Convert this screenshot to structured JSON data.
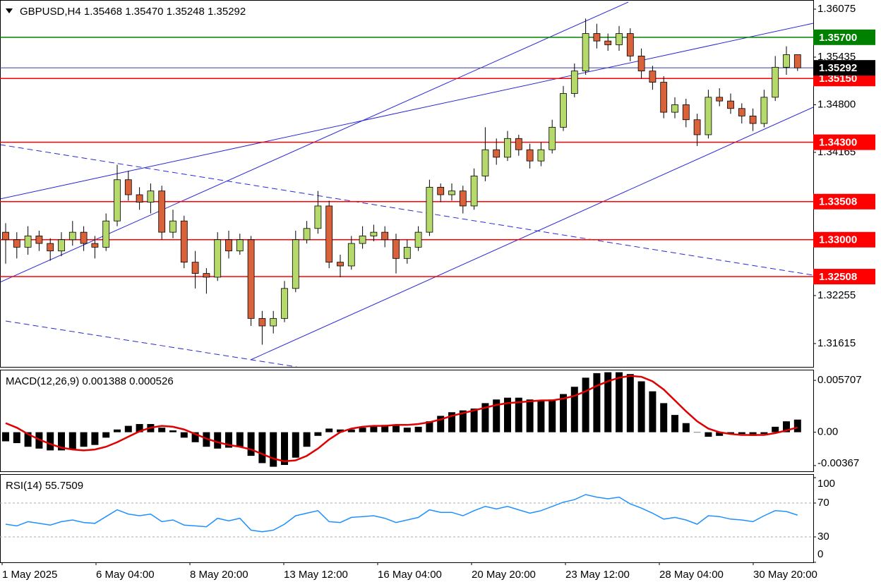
{
  "chart_data": [
    {
      "type": "candlestick",
      "title": "GBPUSD,H4 1.35468 1.35470 1.35248 1.35292",
      "up_color": "#b5d96b",
      "down_color": "#d9623b",
      "open": [
        1.331,
        1.33,
        1.329,
        1.3305,
        1.3295,
        1.3285,
        1.33,
        1.331,
        1.3295,
        1.329,
        1.3325,
        1.338,
        1.336,
        1.335,
        1.3365,
        1.331,
        1.3325,
        1.327,
        1.3255,
        1.325,
        1.33,
        1.3285,
        1.33,
        1.3195,
        1.3185,
        1.3195,
        1.3235,
        1.33,
        1.3315,
        1.3345,
        1.327,
        1.3265,
        1.3295,
        1.3305,
        1.331,
        1.33,
        1.3275,
        1.329,
        1.331,
        1.337,
        1.336,
        1.3365,
        1.3345,
        1.3385,
        1.342,
        1.341,
        1.3435,
        1.342,
        1.3405,
        1.342,
        1.345,
        1.3495,
        1.3525,
        1.3575,
        1.3565,
        1.356,
        1.3575,
        1.3545,
        1.3525,
        1.351,
        1.347,
        1.348,
        1.346,
        1.344,
        1.349,
        1.3485,
        1.3475,
        1.3465,
        1.3455,
        1.349,
        1.353,
        1.35468
      ],
      "high": [
        1.3322,
        1.331,
        1.3318,
        1.3312,
        1.3302,
        1.331,
        1.3325,
        1.3318,
        1.3305,
        1.3335,
        1.34,
        1.3392,
        1.337,
        1.3375,
        1.3372,
        1.334,
        1.3332,
        1.3285,
        1.3262,
        1.331,
        1.3312,
        1.3308,
        1.3305,
        1.3205,
        1.3205,
        1.3245,
        1.3312,
        1.3325,
        1.3365,
        1.3352,
        1.328,
        1.3305,
        1.3318,
        1.332,
        1.3318,
        1.3308,
        1.33,
        1.3318,
        1.338,
        1.3375,
        1.3375,
        1.3372,
        1.3395,
        1.345,
        1.3435,
        1.3445,
        1.344,
        1.3428,
        1.343,
        1.346,
        1.3505,
        1.3535,
        1.3595,
        1.3588,
        1.3575,
        1.3585,
        1.3582,
        1.3555,
        1.3532,
        1.3518,
        1.349,
        1.3488,
        1.3468,
        1.35,
        1.3502,
        1.3495,
        1.3482,
        1.3475,
        1.35,
        1.3545,
        1.3558,
        1.3547
      ],
      "low": [
        1.3268,
        1.3275,
        1.328,
        1.3285,
        1.3272,
        1.3278,
        1.3292,
        1.3285,
        1.3275,
        1.3285,
        1.3318,
        1.3352,
        1.334,
        1.3335,
        1.33,
        1.3302,
        1.3262,
        1.3235,
        1.3228,
        1.3245,
        1.3275,
        1.328,
        1.3185,
        1.316,
        1.3175,
        1.319,
        1.323,
        1.3295,
        1.3308,
        1.3262,
        1.325,
        1.326,
        1.3288,
        1.3298,
        1.329,
        1.3255,
        1.3268,
        1.3285,
        1.3305,
        1.335,
        1.3352,
        1.3335,
        1.334,
        1.3378,
        1.34,
        1.3405,
        1.3412,
        1.3395,
        1.3398,
        1.3415,
        1.3445,
        1.349,
        1.352,
        1.3555,
        1.3552,
        1.3552,
        1.3538,
        1.3515,
        1.35,
        1.3462,
        1.3462,
        1.345,
        1.3425,
        1.3435,
        1.3478,
        1.3468,
        1.3455,
        1.3445,
        1.345,
        1.3485,
        1.352,
        1.3525
      ],
      "close": [
        1.33,
        1.329,
        1.3305,
        1.3295,
        1.3285,
        1.33,
        1.331,
        1.3295,
        1.329,
        1.3325,
        1.338,
        1.336,
        1.335,
        1.3365,
        1.331,
        1.3325,
        1.327,
        1.3255,
        1.325,
        1.33,
        1.3285,
        1.33,
        1.3195,
        1.3185,
        1.3195,
        1.3235,
        1.33,
        1.3315,
        1.3345,
        1.327,
        1.3265,
        1.3295,
        1.3305,
        1.331,
        1.33,
        1.3275,
        1.329,
        1.331,
        1.337,
        1.336,
        1.3365,
        1.3345,
        1.3385,
        1.342,
        1.341,
        1.3435,
        1.342,
        1.3405,
        1.342,
        1.345,
        1.3495,
        1.3525,
        1.3575,
        1.3565,
        1.356,
        1.3575,
        1.3545,
        1.3525,
        1.351,
        1.347,
        1.348,
        1.346,
        1.344,
        1.349,
        1.3485,
        1.3475,
        1.3465,
        1.3455,
        1.349,
        1.353,
        1.35468,
        1.35292
      ],
      "ylim": [
        1.31304,
        1.36197
      ],
      "yticks": [
        1.36075,
        1.35435,
        {
          "value": 1.348,
          "label": "1.34800"
        },
        1.34165,
        1.32255,
        1.31615
      ],
      "levels": [
        {
          "value": 1.357,
          "label": "1.35700",
          "color": "#008000"
        },
        {
          "value": 1.3515,
          "label": "1.35150",
          "color": "#ff0000"
        },
        {
          "value": 1.343,
          "label": "1.34300",
          "color": "#ff0000"
        },
        {
          "value": 1.33508,
          "label": "1.33508",
          "color": "#ff0000"
        },
        {
          "value": 1.33,
          "label": "1.33000",
          "color": "#ff0000"
        },
        {
          "value": 1.32508,
          "label": "1.32508",
          "color": "#ff0000"
        },
        {
          "value": 1.35292,
          "label": "1.35292",
          "color": "#000000",
          "line_color": "#3c3c96"
        }
      ],
      "x_labels": [
        "1 May 2025",
        "6 May 04:00",
        "8 May 20:00",
        "13 May 12:00",
        "16 May 04:00",
        "20 May 20:00",
        "23 May 12:00",
        "28 May 04:00",
        "30 May 20:00"
      ]
    },
    {
      "type": "macd",
      "title": "MACD(12,26,9) 0.001388 0.000526",
      "series": [
        {
          "name": "MACD",
          "color": "#000000",
          "values": [
            -0.001,
            -0.0012,
            -0.0016,
            -0.0018,
            -0.002,
            -0.002,
            -0.0019,
            -0.0016,
            -0.0014,
            -0.0006,
            0.0003,
            0.0007,
            0.0009,
            0.0009,
            0.0005,
            0.0002,
            -0.0006,
            -0.0011,
            -0.0016,
            -0.0018,
            -0.0017,
            -0.0016,
            -0.0026,
            -0.0034,
            -0.0038,
            -0.0036,
            -0.0028,
            -0.0016,
            -0.0004,
            0.0004,
            0.0003,
            0.0003,
            0.0005,
            0.0007,
            0.0008,
            0.0007,
            0.0005,
            0.0006,
            0.0012,
            0.0018,
            0.0022,
            0.0024,
            0.0026,
            0.0032,
            0.0036,
            0.0038,
            0.0038,
            0.0036,
            0.0035,
            0.0036,
            0.0042,
            0.005,
            0.006,
            0.0065,
            0.0066,
            0.0066,
            0.0064,
            0.0056,
            0.0045,
            0.0032,
            0.0019,
            0.001,
            0.0,
            -0.0005,
            -0.0004,
            -0.0002,
            -0.0002,
            -0.0004,
            -0.0002,
            0.0006,
            0.0012,
            0.001388
          ]
        },
        {
          "name": "Signal",
          "color": "#e00000",
          "values": [
            0.001,
            0.0005,
            -0.0002,
            -0.0008,
            -0.0013,
            -0.0017,
            -0.0019,
            -0.002,
            -0.0019,
            -0.0016,
            -0.0011,
            -0.0005,
            0.0001,
            0.0005,
            0.0007,
            0.0006,
            0.0003,
            -0.0002,
            -0.0007,
            -0.0011,
            -0.0014,
            -0.0016,
            -0.0019,
            -0.0024,
            -0.0029,
            -0.0032,
            -0.0031,
            -0.0026,
            -0.0018,
            -0.0008,
            0.0,
            0.0004,
            0.0006,
            0.0007,
            0.0007,
            0.0008,
            0.0008,
            0.0009,
            0.0011,
            0.0014,
            0.0018,
            0.0021,
            0.0024,
            0.0027,
            0.003,
            0.0032,
            0.0033,
            0.0034,
            0.0035,
            0.0035,
            0.0037,
            0.004,
            0.0045,
            0.0051,
            0.0056,
            0.006,
            0.0062,
            0.0061,
            0.0056,
            0.0047,
            0.0035,
            0.0023,
            0.0012,
            0.0004,
            0.0,
            -0.0002,
            -0.0003,
            -0.0003,
            -0.0003,
            -0.0001,
            0.0002,
            0.000526
          ]
        }
      ],
      "ylim": [
        -0.0043,
        0.00688
      ],
      "yticks": [
        0.005707,
        {
          "value": 0,
          "label": "0.00"
        },
        -0.00367
      ]
    },
    {
      "type": "line",
      "title": "RSI(14) 55.7509",
      "series": [
        {
          "name": "RSI",
          "color": "#1e90ff",
          "values": [
            45,
            43,
            48,
            46,
            44,
            48,
            50,
            47,
            46,
            54,
            62,
            57,
            55,
            57,
            48,
            50,
            44,
            43,
            42,
            52,
            49,
            52,
            38,
            36,
            38,
            45,
            55,
            58,
            61,
            48,
            47,
            53,
            54,
            55,
            52,
            47,
            50,
            53,
            62,
            59,
            59,
            55,
            61,
            66,
            63,
            66,
            62,
            58,
            61,
            66,
            71,
            74,
            80,
            77,
            75,
            77,
            69,
            64,
            58,
            51,
            53,
            50,
            45,
            55,
            54,
            51,
            50,
            48,
            55,
            61,
            60,
            55.7509
          ]
        }
      ],
      "ylim": [
        0,
        100
      ],
      "yticks": [
        0,
        30,
        70,
        100
      ],
      "levels": [
        30,
        70
      ]
    }
  ]
}
